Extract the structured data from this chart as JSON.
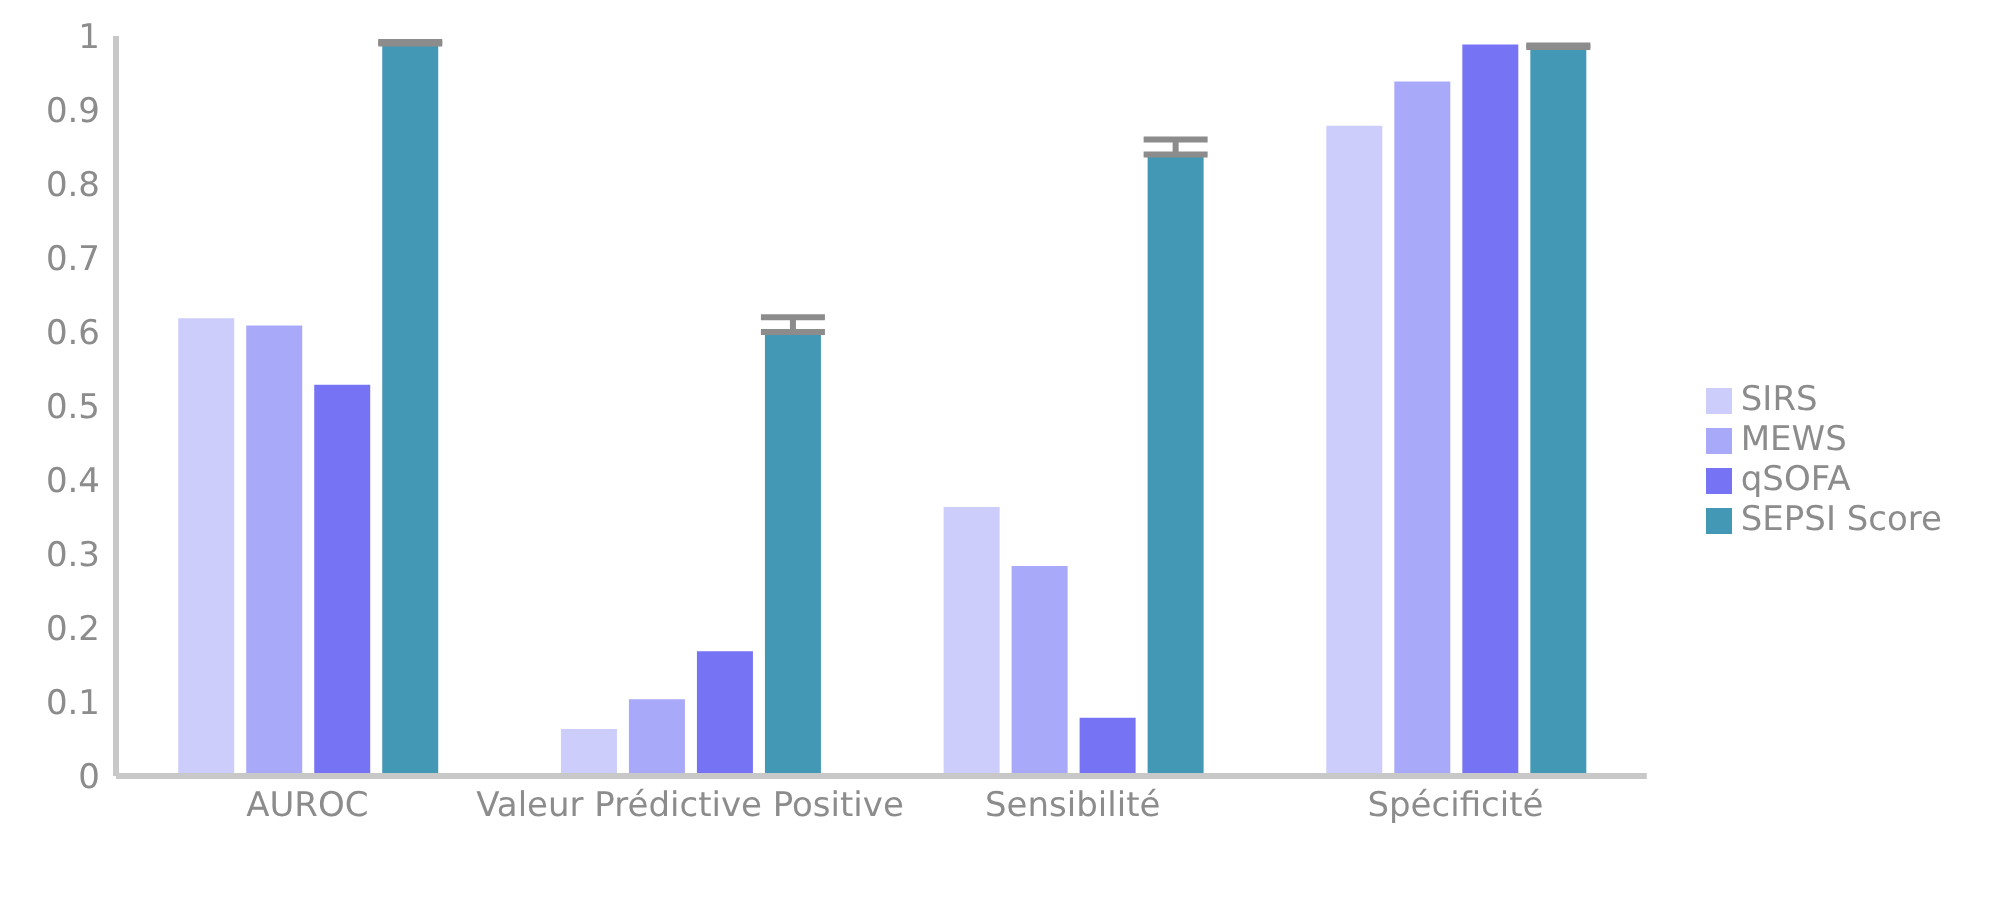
{
  "chart_data": {
    "type": "bar",
    "categories": [
      "AUROC",
      "Valeur Prédictive Positive",
      "Sensibilité",
      "Spécificité"
    ],
    "series": [
      {
        "name": "SIRS",
        "color": "#cccdfa",
        "values": [
          0.62,
          0.065,
          0.365,
          0.88
        ]
      },
      {
        "name": "MEWS",
        "color": "#a9a9f9",
        "values": [
          0.61,
          0.105,
          0.285,
          0.94
        ]
      },
      {
        "name": "qSOFA",
        "color": "#7674f4",
        "values": [
          0.53,
          0.17,
          0.08,
          0.99
        ]
      },
      {
        "name": "SEPSI Score",
        "color": "#4398b5",
        "values": [
          0.99,
          0.6,
          0.84,
          0.985
        ],
        "errors": [
          [
            0.99,
            0.992
          ],
          [
            0.6,
            0.62
          ],
          [
            0.84,
            0.86
          ],
          [
            0.985,
            0.987
          ]
        ]
      }
    ],
    "ylim": [
      0,
      1
    ],
    "yticks": [
      0,
      0.1,
      0.2,
      0.3,
      0.4,
      0.5,
      0.6,
      0.7,
      0.8,
      0.9,
      1
    ],
    "grid": false,
    "legend": "right"
  }
}
